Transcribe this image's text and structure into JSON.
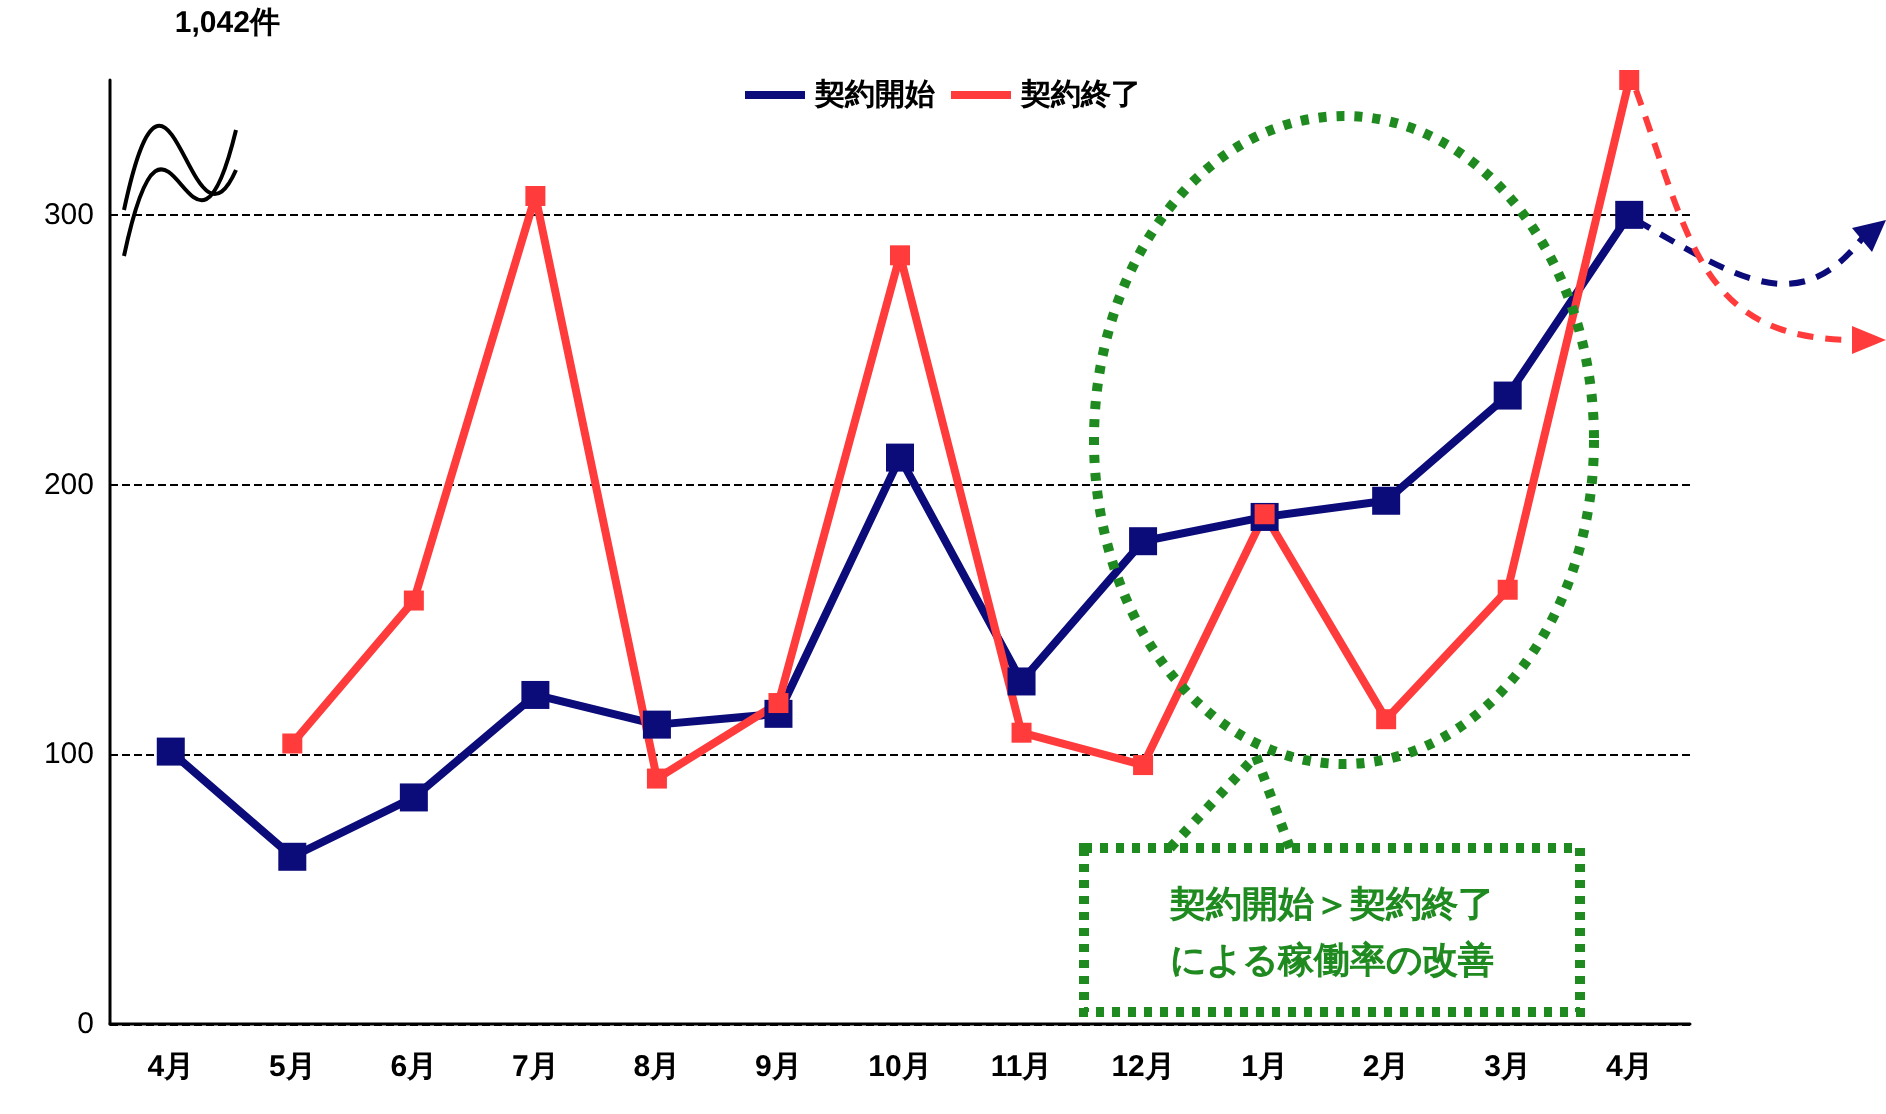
{
  "chart_data": {
    "type": "line",
    "categories": [
      "4月",
      "5月",
      "6月",
      "7月",
      "8月",
      "9月",
      "10月",
      "11月",
      "12月",
      "1月",
      "2月",
      "3月",
      "4月"
    ],
    "series": [
      {
        "name": "契約開始",
        "color": "#0b0b7a",
        "values": [
          101,
          62,
          84,
          122,
          111,
          115,
          210,
          127,
          179,
          188,
          194,
          233,
          300
        ]
      },
      {
        "name": "契約終了",
        "color": "#ff3b3b",
        "values": [
          null,
          104,
          157,
          307,
          91,
          119,
          285,
          108,
          96,
          189,
          113,
          161,
          350
        ]
      }
    ],
    "ylim": [
      0,
      350
    ],
    "yticks": [
      0,
      100,
      200,
      300
    ],
    "grid": "y",
    "legend": "top",
    "marker": "square",
    "line_style": "solid",
    "annotations": [
      "1,042件",
      "契約開始＞契約終了",
      "による稼働率の改善"
    ]
  }
}
